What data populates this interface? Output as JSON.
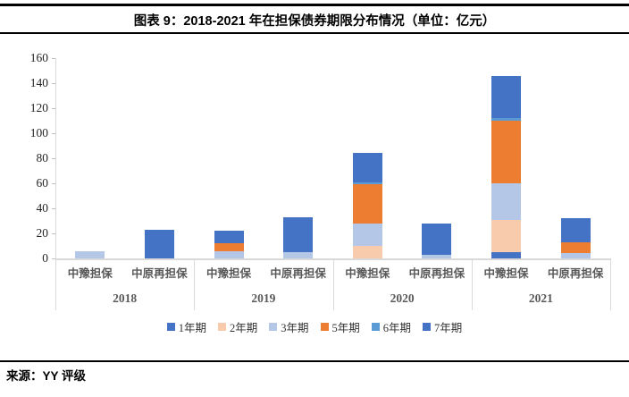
{
  "header": {
    "title": "图表 9：2018-2021 年在担保债券期限分布情况（单位：亿元）"
  },
  "footer": {
    "source": "来源：YY 评级"
  },
  "colors": {
    "axis_line": "#D9D9D9",
    "tick_mark": "#BFBFBF",
    "tick_label": "#262626",
    "category_label": "#595959",
    "rule": "#000000"
  },
  "chart_data": {
    "type": "bar",
    "stacked": true,
    "orientation": "vertical",
    "title": "",
    "xlabel": "",
    "ylabel": "",
    "unit": "亿元",
    "ylim": [
      0,
      160
    ],
    "yticks": [
      0,
      20,
      40,
      60,
      80,
      100,
      120,
      140,
      160
    ],
    "gridlines": false,
    "legend_position": "bottom",
    "series_order": [
      "1年期",
      "2年期",
      "3年期",
      "5年期",
      "6年期",
      "7年期"
    ],
    "series_colors": {
      "1年期": "#4472C4",
      "2年期": "#F8CBAD",
      "3年期": "#B4C7E7",
      "5年期": "#ED7D31",
      "6年期": "#5B9BD5",
      "7年期": "#4472C4"
    },
    "groups": [
      {
        "year": "2018",
        "bars": [
          {
            "label": "中豫担保",
            "values": {
              "3年期": 6
            },
            "total": 6
          },
          {
            "label": "中原再担保",
            "values": {
              "7年期": 23
            },
            "total": 23
          }
        ]
      },
      {
        "year": "2019",
        "bars": [
          {
            "label": "中豫担保",
            "values": {
              "3年期": 6,
              "5年期": 6,
              "7年期": 10
            },
            "total": 22
          },
          {
            "label": "中原再担保",
            "values": {
              "3年期": 5,
              "7年期": 28
            },
            "total": 33
          }
        ]
      },
      {
        "year": "2020",
        "bars": [
          {
            "label": "中豫担保",
            "values": {
              "2年期": 10,
              "3年期": 18,
              "5年期": 31,
              "6年期": 2,
              "7年期": 23
            },
            "total": 84
          },
          {
            "label": "中原再担保",
            "values": {
              "3年期": 3,
              "7年期": 25
            },
            "total": 28
          }
        ]
      },
      {
        "year": "2021",
        "bars": [
          {
            "label": "中豫担保",
            "values": {
              "1年期": 5,
              "2年期": 26,
              "3年期": 29,
              "5年期": 50,
              "6年期": 2,
              "7年期": 34
            },
            "total": 146
          },
          {
            "label": "中原再担保",
            "values": {
              "3年期": 4,
              "5年期": 9,
              "7年期": 19
            },
            "total": 32
          }
        ]
      }
    ]
  }
}
